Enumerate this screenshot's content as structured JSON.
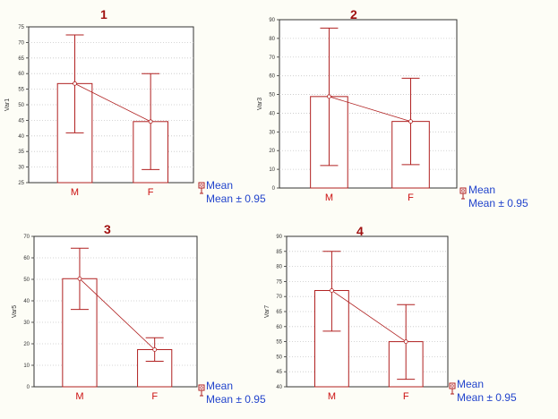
{
  "legend": {
    "mean_label": "Mean",
    "ci_label": "Mean ± 0.95"
  },
  "colors": {
    "bar_stroke": "#b02020",
    "category_text": "#cc1010",
    "legend_text": "#2244cc",
    "title_text": "#a01010",
    "grid": "#c8c8c8"
  },
  "chart_data": [
    {
      "type": "bar",
      "title": "1",
      "ylabel": "Var1",
      "categories": [
        "M",
        "F"
      ],
      "values": [
        56.8,
        44.6
      ],
      "ci_low": [
        41.0,
        29.2
      ],
      "ci_high": [
        72.4,
        60.0
      ],
      "ylim": [
        25,
        75
      ],
      "yticks": [
        25,
        30,
        35,
        40,
        45,
        50,
        55,
        60,
        65,
        70,
        75
      ],
      "grid": true
    },
    {
      "type": "bar",
      "title": "2",
      "ylabel": "Var3",
      "categories": [
        "M",
        "F"
      ],
      "values": [
        48.9,
        35.6
      ],
      "ci_low": [
        12.0,
        12.5
      ],
      "ci_high": [
        85.5,
        58.7
      ],
      "ylim": [
        0,
        90
      ],
      "yticks": [
        0,
        10,
        20,
        30,
        40,
        50,
        60,
        70,
        80,
        90
      ],
      "grid": true
    },
    {
      "type": "bar",
      "title": "3",
      "ylabel": "Var5",
      "categories": [
        "M",
        "F"
      ],
      "values": [
        50.3,
        17.3
      ],
      "ci_low": [
        36.0,
        11.9
      ],
      "ci_high": [
        64.5,
        22.8
      ],
      "ylim": [
        0,
        70
      ],
      "yticks": [
        0,
        10,
        20,
        30,
        40,
        50,
        60,
        70
      ],
      "grid": true
    },
    {
      "type": "bar",
      "title": "4",
      "ylabel": "Var7",
      "categories": [
        "M",
        "F"
      ],
      "values": [
        72.0,
        55.0
      ],
      "ci_low": [
        58.5,
        42.5
      ],
      "ci_high": [
        85.0,
        67.3
      ],
      "ylim": [
        40,
        90
      ],
      "yticks": [
        40,
        45,
        50,
        55,
        60,
        65,
        70,
        75,
        80,
        85,
        90
      ],
      "grid": true
    }
  ]
}
